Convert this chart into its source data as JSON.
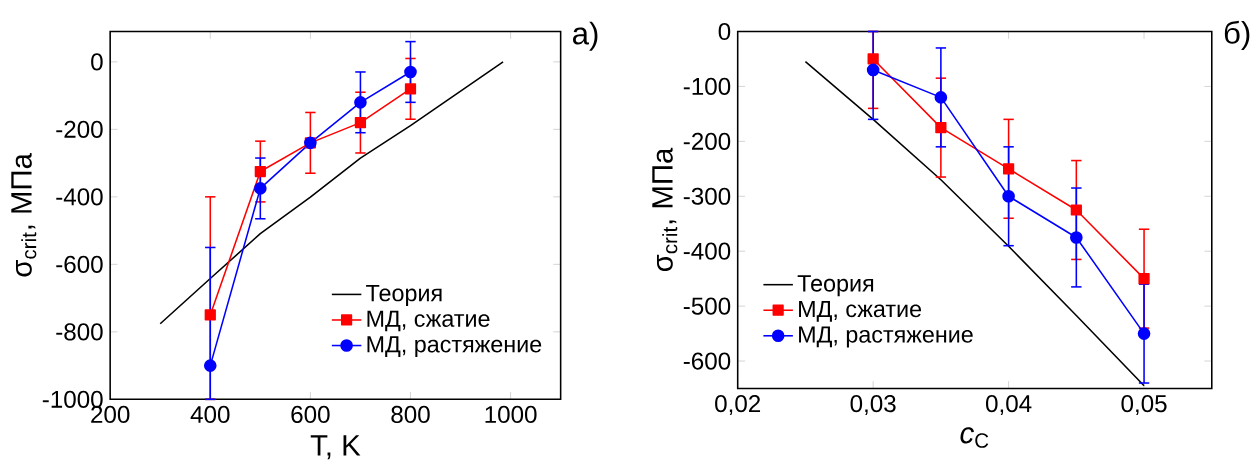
{
  "chart_data": [
    {
      "type": "line",
      "xlabel": "T, K",
      "ylabel": "σ$_{crit}$, МПа",
      "xlim": [
        200,
        1100
      ],
      "ylim": [
        -1000,
        90
      ],
      "xticks": [
        200,
        400,
        600,
        800,
        1000
      ],
      "yticks": [
        -1000,
        -800,
        -600,
        -400,
        -200,
        0
      ],
      "legend": "bottom right",
      "annotations": [
        "а)"
      ],
      "series": [
        {
          "name": "Теория",
          "color": "#000000",
          "marker": "none",
          "x": [
            300,
            400,
            500,
            600,
            700,
            800,
            985
          ],
          "values": [
            -776,
            -642,
            -509,
            -401,
            -285,
            -189,
            0
          ]
        },
        {
          "name": "МД, сжатие",
          "color": "#ff0000",
          "marker": "square",
          "x": [
            400,
            500,
            600,
            700,
            800
          ],
          "values": [
            -750,
            -325,
            -240,
            -180,
            -80
          ],
          "errors": [
            [
              -1000,
              -400
            ],
            90,
            90,
            90,
            90
          ]
        },
        {
          "name": "МД, растяжение",
          "color": "#0000ff",
          "marker": "circle",
          "x": [
            400,
            500,
            600,
            700,
            800
          ],
          "values": [
            -900,
            -375,
            -240,
            -120,
            -30
          ],
          "errors": [
            [
              -1000,
              -550
            ],
            90,
            null,
            90,
            90
          ]
        }
      ]
    },
    {
      "type": "line",
      "xlabel": "*c*$_{C}$",
      "ylabel": "σ$_{crit}$, МПа",
      "xlim": [
        0.02,
        0.055
      ],
      "ylim": [
        -650,
        0
      ],
      "xticks": [
        {
          "value": 0.02,
          "label": "0,02"
        },
        {
          "value": 0.03,
          "label": "0,03"
        },
        {
          "value": 0.04,
          "label": "0,04"
        },
        {
          "value": 0.05,
          "label": "0,05"
        }
      ],
      "yticks": [
        -600,
        -500,
        -400,
        -300,
        -200,
        -100,
        0
      ],
      "legend": "bottom left",
      "annotations": [
        "б)"
      ],
      "series": [
        {
          "name": "Теория",
          "color": "#000000",
          "marker": "none",
          "x": [
            0.025,
            0.03,
            0.035,
            0.04,
            0.045,
            0.05
          ],
          "values": [
            -55,
            -160,
            -270,
            -391,
            -517,
            -645
          ]
        },
        {
          "name": "МД, сжатие",
          "color": "#ff0000",
          "marker": "square",
          "x": [
            0.03,
            0.035,
            0.04,
            0.045,
            0.05
          ],
          "values": [
            -50,
            -175,
            -250,
            -325,
            -450
          ],
          "errors": [
            [
              -140,
              0
            ],
            90,
            90,
            90,
            90
          ]
        },
        {
          "name": "МД, растяжение",
          "color": "#0000ff",
          "marker": "circle",
          "x": [
            0.03,
            0.035,
            0.04,
            0.045,
            0.05
          ],
          "values": [
            -70,
            -120,
            -300,
            -375,
            -550
          ],
          "errors": [
            [
              -160,
              0
            ],
            90,
            90,
            90,
            90
          ]
        }
      ]
    }
  ]
}
